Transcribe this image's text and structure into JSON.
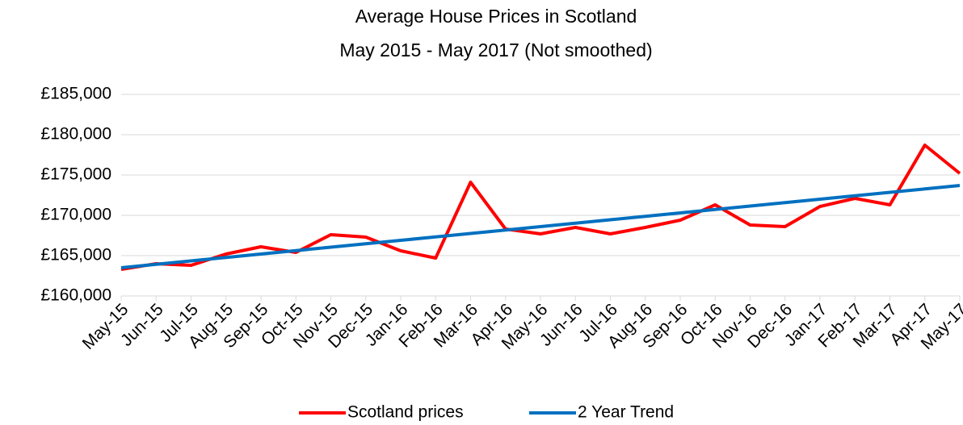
{
  "chart_data": {
    "type": "line",
    "title": "Average House Prices in Scotland",
    "subtitle": "May 2015 - May 2017 (Not smoothed)",
    "categories": [
      "May-15",
      "Jun-15",
      "Jul-15",
      "Aug-15",
      "Sep-15",
      "Oct-15",
      "Nov-15",
      "Dec-15",
      "Jan-16",
      "Feb-16",
      "Mar-16",
      "Apr-16",
      "May-16",
      "Jun-16",
      "Jul-16",
      "Aug-16",
      "Sep-16",
      "Oct-16",
      "Nov-16",
      "Dec-16",
      "Jan-17",
      "Feb-17",
      "Mar-17",
      "Apr-17",
      "May-17"
    ],
    "series": [
      {
        "name": "Scotland prices",
        "color": "#ff0000",
        "values": [
          163300,
          164000,
          163800,
          165200,
          166100,
          165400,
          167600,
          167300,
          165600,
          164700,
          174100,
          168300,
          167700,
          168500,
          167700,
          168500,
          169400,
          171300,
          168800,
          168600,
          171100,
          172100,
          171300,
          178700,
          175200
        ]
      },
      {
        "name": "2 Year Trend",
        "color": "#0070c0",
        "values": [
          163500,
          163925,
          164350,
          164775,
          165200,
          165625,
          166050,
          166475,
          166900,
          167325,
          167750,
          168175,
          168600,
          169025,
          169450,
          169875,
          170300,
          170725,
          171150,
          171575,
          172000,
          172425,
          172850,
          173275,
          173700
        ]
      }
    ],
    "ylim": [
      160000,
      185000
    ],
    "yticks": [
      {
        "value": 160000,
        "label": "£160,000"
      },
      {
        "value": 165000,
        "label": "£165,000"
      },
      {
        "value": 170000,
        "label": "£170,000"
      },
      {
        "value": 175000,
        "label": "£175,000"
      },
      {
        "value": 180000,
        "label": "£180,000"
      },
      {
        "value": 185000,
        "label": "£185,000"
      }
    ],
    "grid": true,
    "legend": "bottom"
  }
}
